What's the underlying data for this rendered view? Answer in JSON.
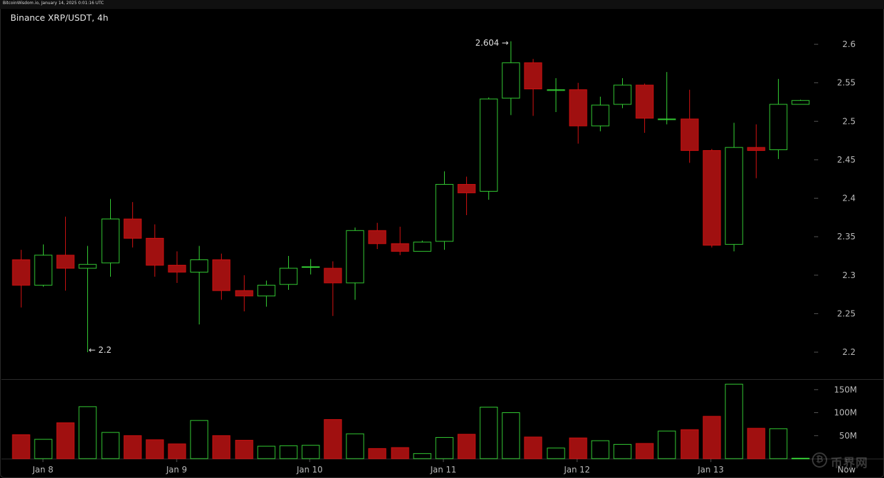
{
  "header": {
    "text": "BitcoinWisdom.io, January 14, 2025 0:01:16 UTC"
  },
  "chart_data": {
    "type": "candlestick",
    "title": "Binance XRP/USDT, 4h",
    "price_axis": {
      "ylim": [
        2.165,
        2.645
      ],
      "ticks": [
        "2.2",
        "2.25",
        "2.3",
        "2.35",
        "2.4",
        "2.45",
        "2.5",
        "2.55",
        "2.6"
      ]
    },
    "volume_axis": {
      "ylim": [
        0,
        170
      ],
      "ticks": [
        "50M",
        "100M",
        "150M"
      ],
      "unit": "M"
    },
    "x_labels": [
      "Jan 8",
      "Jan 9",
      "Jan 10",
      "Jan 11",
      "Jan 12",
      "Jan 13",
      "Now"
    ],
    "annotations": {
      "high": "2.604 →",
      "low": "← 2.2"
    },
    "colors": {
      "up": "#33cc33",
      "down": "#cc1111",
      "down_fill": "#a01010",
      "grid": "#1e1e1e",
      "text": "#bbbbbb"
    },
    "candles": [
      {
        "o": 2.32,
        "h": 2.333,
        "l": 2.258,
        "c": 2.287,
        "v": 52
      },
      {
        "o": 2.287,
        "h": 2.34,
        "l": 2.285,
        "c": 2.326,
        "v": 42
      },
      {
        "o": 2.326,
        "h": 2.376,
        "l": 2.28,
        "c": 2.309,
        "v": 78
      },
      {
        "o": 2.309,
        "h": 2.338,
        "l": 2.2,
        "c": 2.314,
        "v": 113
      },
      {
        "o": 2.316,
        "h": 2.399,
        "l": 2.298,
        "c": 2.373,
        "v": 57
      },
      {
        "o": 2.373,
        "h": 2.395,
        "l": 2.336,
        "c": 2.348,
        "v": 50
      },
      {
        "o": 2.348,
        "h": 2.366,
        "l": 2.298,
        "c": 2.313,
        "v": 41
      },
      {
        "o": 2.313,
        "h": 2.331,
        "l": 2.29,
        "c": 2.304,
        "v": 32
      },
      {
        "o": 2.304,
        "h": 2.338,
        "l": 2.236,
        "c": 2.32,
        "v": 83
      },
      {
        "o": 2.32,
        "h": 2.328,
        "l": 2.268,
        "c": 2.28,
        "v": 50
      },
      {
        "o": 2.28,
        "h": 2.3,
        "l": 2.253,
        "c": 2.273,
        "v": 40
      },
      {
        "o": 2.273,
        "h": 2.293,
        "l": 2.259,
        "c": 2.287,
        "v": 27
      },
      {
        "o": 2.288,
        "h": 2.325,
        "l": 2.281,
        "c": 2.309,
        "v": 28
      },
      {
        "o": 2.311,
        "h": 2.321,
        "l": 2.301,
        "c": 2.311,
        "v": 29
      },
      {
        "o": 2.309,
        "h": 2.318,
        "l": 2.247,
        "c": 2.29,
        "v": 85
      },
      {
        "o": 2.29,
        "h": 2.362,
        "l": 2.268,
        "c": 2.358,
        "v": 54
      },
      {
        "o": 2.358,
        "h": 2.368,
        "l": 2.334,
        "c": 2.341,
        "v": 22
      },
      {
        "o": 2.341,
        "h": 2.363,
        "l": 2.326,
        "c": 2.331,
        "v": 24
      },
      {
        "o": 2.331,
        "h": 2.345,
        "l": 2.331,
        "c": 2.343,
        "v": 11
      },
      {
        "o": 2.344,
        "h": 2.435,
        "l": 2.333,
        "c": 2.418,
        "v": 46
      },
      {
        "o": 2.418,
        "h": 2.428,
        "l": 2.378,
        "c": 2.407,
        "v": 53
      },
      {
        "o": 2.409,
        "h": 2.531,
        "l": 2.398,
        "c": 2.529,
        "v": 112
      },
      {
        "o": 2.53,
        "h": 2.604,
        "l": 2.508,
        "c": 2.576,
        "v": 100
      },
      {
        "o": 2.576,
        "h": 2.581,
        "l": 2.507,
        "c": 2.542,
        "v": 47
      },
      {
        "o": 2.54,
        "h": 2.556,
        "l": 2.512,
        "c": 2.541,
        "v": 23
      },
      {
        "o": 2.541,
        "h": 2.55,
        "l": 2.471,
        "c": 2.494,
        "v": 45
      },
      {
        "o": 2.494,
        "h": 2.532,
        "l": 2.487,
        "c": 2.521,
        "v": 39
      },
      {
        "o": 2.522,
        "h": 2.556,
        "l": 2.517,
        "c": 2.547,
        "v": 31
      },
      {
        "o": 2.547,
        "h": 2.549,
        "l": 2.485,
        "c": 2.504,
        "v": 33
      },
      {
        "o": 2.503,
        "h": 2.564,
        "l": 2.496,
        "c": 2.503,
        "v": 60
      },
      {
        "o": 2.503,
        "h": 2.541,
        "l": 2.446,
        "c": 2.462,
        "v": 63
      },
      {
        "o": 2.462,
        "h": 2.464,
        "l": 2.336,
        "c": 2.339,
        "v": 92
      },
      {
        "o": 2.34,
        "h": 2.498,
        "l": 2.331,
        "c": 2.466,
        "v": 162
      },
      {
        "o": 2.466,
        "h": 2.496,
        "l": 2.426,
        "c": 2.462,
        "v": 66
      },
      {
        "o": 2.463,
        "h": 2.555,
        "l": 2.451,
        "c": 2.522,
        "v": 65
      },
      {
        "o": 2.522,
        "h": 2.528,
        "l": 2.522,
        "c": 2.527,
        "v": 1
      }
    ]
  }
}
